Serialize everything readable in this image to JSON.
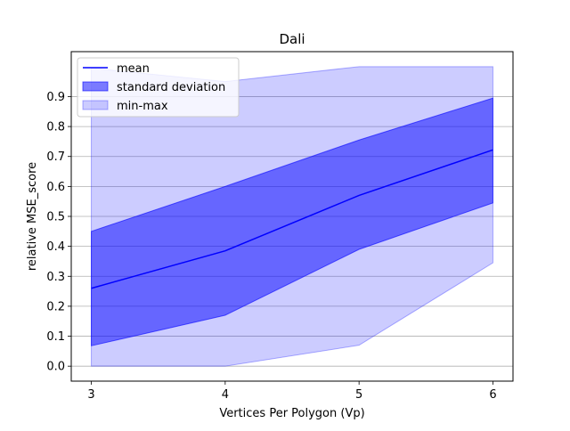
{
  "chart_data": {
    "type": "area",
    "title": "Dali",
    "xlabel": "Vertices Per Polygon (Vp)",
    "ylabel": "relative MSE_score",
    "x": [
      3,
      4,
      5,
      6
    ],
    "xticks": [
      "3",
      "4",
      "5",
      "6"
    ],
    "yticks": [
      "0.0",
      "0.1",
      "0.2",
      "0.3",
      "0.4",
      "0.5",
      "0.6",
      "0.7",
      "0.8",
      "0.9"
    ],
    "xlim": [
      2.85,
      6.15
    ],
    "ylim": [
      -0.05,
      1.05
    ],
    "grid": "horizontal",
    "legend_position": "upper-left",
    "series": [
      {
        "name": "mean",
        "kind": "line",
        "color": "#0000ff",
        "values": [
          0.26,
          0.385,
          0.57,
          0.722
        ]
      },
      {
        "name": "standard deviation",
        "kind": "band",
        "color": "#0000ff",
        "opacity": 0.5,
        "lower": [
          0.068,
          0.17,
          0.39,
          0.545
        ],
        "upper": [
          0.45,
          0.6,
          0.755,
          0.895
        ]
      },
      {
        "name": "min-max",
        "kind": "band",
        "color": "#0000ff",
        "opacity": 0.2,
        "lower": [
          0.0,
          0.0,
          0.07,
          0.345
        ],
        "upper": [
          0.995,
          0.95,
          1.0,
          1.0
        ]
      }
    ]
  }
}
